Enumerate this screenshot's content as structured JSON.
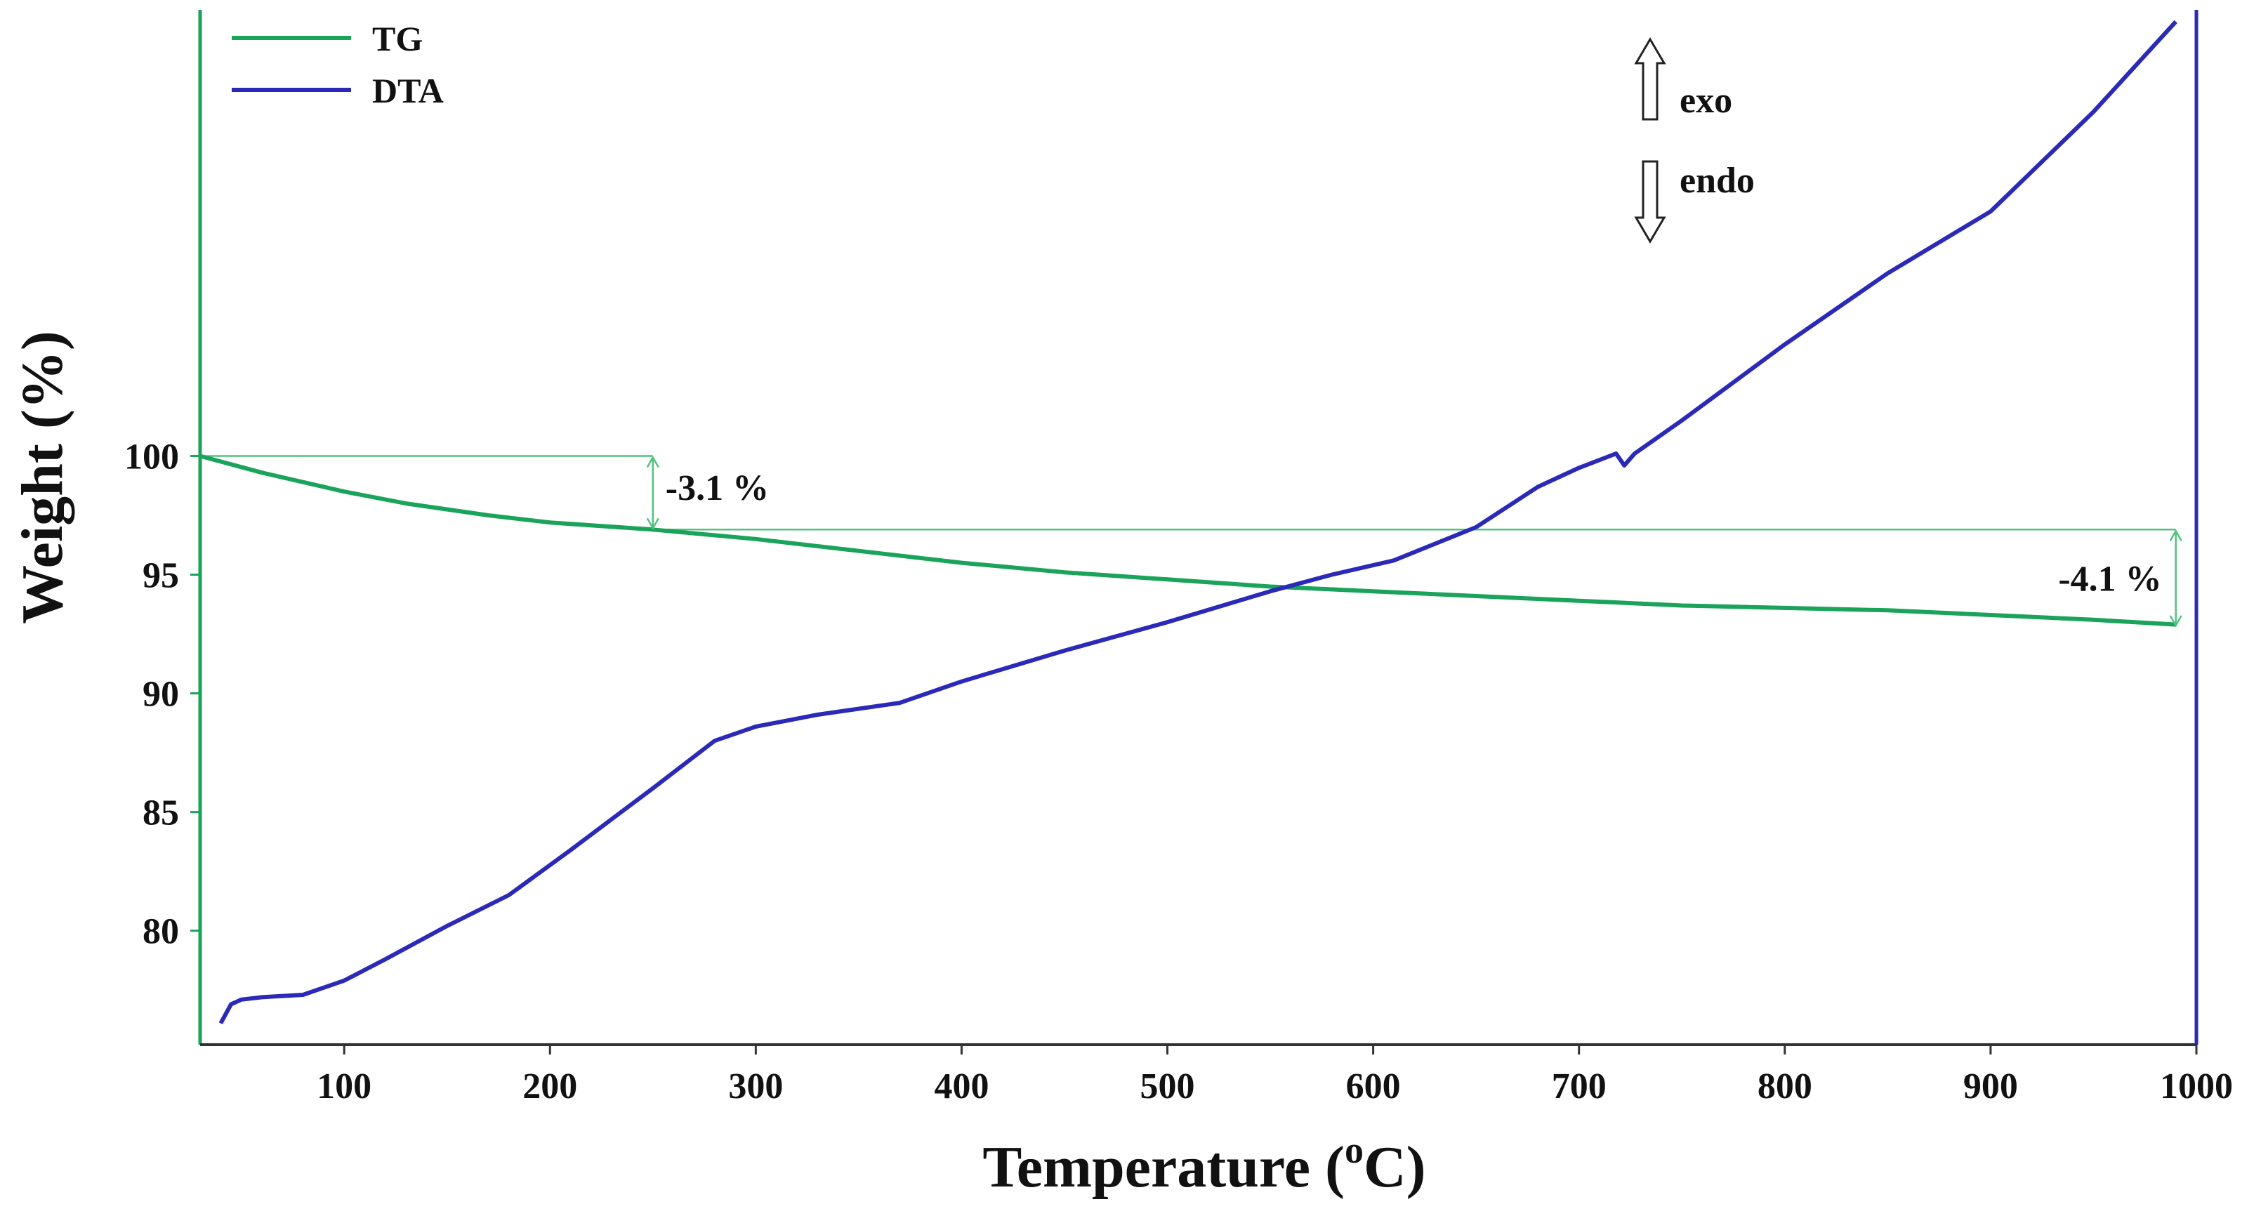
{
  "chart_data": {
    "type": "line",
    "title": "",
    "xlabel": "Temperature (°C)",
    "xlabel_main": "Temperature (",
    "xlabel_sup": "o",
    "xlabel_end": "C)",
    "ylabel": "Weight (%)",
    "xlim": [
      30,
      1000
    ],
    "ylim": [
      75.2,
      118.5
    ],
    "x_ticks": [
      100,
      200,
      300,
      400,
      500,
      600,
      700,
      800,
      900,
      1000
    ],
    "x_tick_labels": [
      "100",
      "200",
      "300",
      "400",
      "500",
      "600",
      "700",
      "800",
      "900",
      "1000"
    ],
    "y_ticks": [
      80,
      85,
      90,
      95,
      100
    ],
    "y_tick_labels": [
      "80",
      "85",
      "90",
      "95",
      "100"
    ],
    "grid": false,
    "legend_position": "top-left",
    "colors": {
      "tg": "#1aa35a",
      "dta": "#2b2ab8",
      "tg_ref": "#52c27f"
    },
    "series": [
      {
        "name": "TG",
        "axis": "left",
        "x": [
          30,
          60,
          100,
          130,
          170,
          200,
          250,
          300,
          350,
          400,
          450,
          500,
          550,
          600,
          650,
          700,
          750,
          800,
          850,
          900,
          950,
          990
        ],
        "values": [
          100.0,
          99.3,
          98.5,
          98.0,
          97.5,
          97.2,
          96.9,
          96.5,
          96.0,
          95.5,
          95.1,
          94.8,
          94.5,
          94.3,
          94.1,
          93.9,
          93.7,
          93.6,
          93.5,
          93.3,
          93.1,
          92.9
        ]
      },
      {
        "name": "DTA",
        "axis": "right",
        "x": [
          40,
          45,
          50,
          60,
          80,
          100,
          120,
          150,
          180,
          210,
          250,
          280,
          300,
          330,
          370,
          400,
          450,
          500,
          550,
          580,
          610,
          650,
          680,
          700,
          718,
          722,
          727,
          750,
          800,
          850,
          900,
          950,
          990
        ],
        "values": [
          76.1,
          76.9,
          77.1,
          77.2,
          77.3,
          77.9,
          78.8,
          80.2,
          81.5,
          83.4,
          86.0,
          88.0,
          88.6,
          89.1,
          89.6,
          90.5,
          91.8,
          93.0,
          94.3,
          95.0,
          95.6,
          97.0,
          98.7,
          99.5,
          100.1,
          99.6,
          100.1,
          101.5,
          104.7,
          107.7,
          110.3,
          114.5,
          118.3
        ]
      }
    ],
    "legend": [
      {
        "name": "TG",
        "label": "TG"
      },
      {
        "name": "DTA",
        "label": "DTA"
      }
    ],
    "annotations": [
      {
        "label": "-3.1 %",
        "x_start": 30,
        "x_end": 250,
        "y_top": 100.0,
        "y_bottom": 96.9,
        "bracket_x": 250
      },
      {
        "label": "-4.1 %",
        "x_start": 250,
        "x_end": 990,
        "y_top": 96.9,
        "y_bottom": 92.8,
        "bracket_x": 990
      }
    ],
    "direction_labels": {
      "exo": "exo",
      "endo": "endo"
    }
  }
}
